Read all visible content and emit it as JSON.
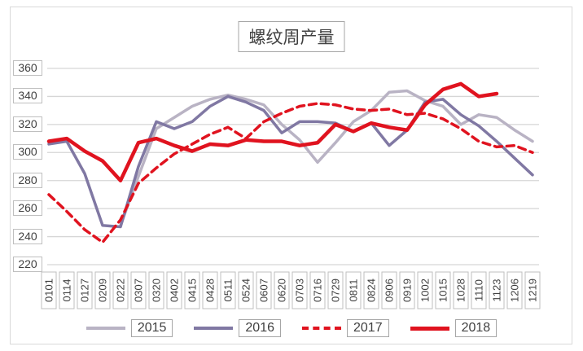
{
  "chart_data": {
    "type": "line",
    "title": "螺纹周产量",
    "xlabel": "",
    "ylabel": "",
    "ylim": [
      220,
      360
    ],
    "y_ticks": [
      360,
      340,
      320,
      300,
      280,
      260,
      240,
      220
    ],
    "grid": "horizontal",
    "legend_position": "bottom",
    "categories": [
      "0101",
      "0114",
      "0127",
      "0209",
      "0222",
      "0307",
      "0320",
      "0402",
      "0415",
      "0428",
      "0511",
      "0524",
      "0607",
      "0620",
      "0703",
      "0716",
      "0729",
      "0811",
      "0824",
      "0906",
      "0919",
      "1002",
      "1015",
      "1028",
      "1110",
      "1123",
      "1206",
      "1219"
    ],
    "series": [
      {
        "name": "2015",
        "color": "#b9b3c4",
        "style": "solid",
        "width": 3.5,
        "values": [
          null,
          null,
          null,
          null,
          248,
          283,
          317,
          325,
          333,
          338,
          341,
          338,
          334,
          320,
          309,
          293,
          307,
          322,
          330,
          343,
          344,
          337,
          333,
          320,
          327,
          325,
          316,
          308
        ]
      },
      {
        "name": "2016",
        "color": "#8078a3",
        "style": "solid",
        "width": 3.5,
        "values": [
          306,
          308,
          285,
          248,
          247,
          290,
          322,
          317,
          322,
          333,
          340,
          336,
          330,
          314,
          322,
          322,
          321,
          315,
          321,
          305,
          316,
          336,
          338,
          327,
          319,
          308,
          296,
          284
        ]
      },
      {
        "name": "2017",
        "color": "#e0131f",
        "style": "dashed",
        "width": 3.5,
        "values": [
          270,
          258,
          245,
          236,
          252,
          278,
          289,
          299,
          306,
          313,
          318,
          310,
          322,
          328,
          333,
          335,
          334,
          331,
          330,
          331,
          327,
          328,
          324,
          317,
          308,
          304,
          305,
          300
        ]
      },
      {
        "name": "2018",
        "color": "#e0131f",
        "style": "solid",
        "width": 4.5,
        "values": [
          308,
          310,
          301,
          294,
          280,
          307,
          310,
          305,
          301,
          306,
          305,
          309,
          308,
          308,
          305,
          307,
          320,
          315,
          321,
          318,
          316,
          334,
          345,
          349,
          340,
          342,
          null,
          null
        ]
      }
    ],
    "colors": {
      "grid": "#d6d6d6",
      "axis_text": "#404040",
      "box_border": "#bfbfbf",
      "frame_border": "#d9d9d9"
    }
  }
}
